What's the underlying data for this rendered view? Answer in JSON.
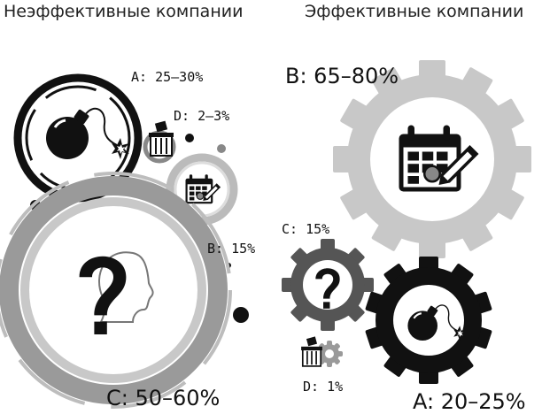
{
  "left_column": {
    "heading": "Неэффективные компании",
    "label_a": "A: 25–30%",
    "label_d": "D: 2–3%",
    "label_b": "B: 15%",
    "label_c": "C: 50–60%"
  },
  "right_column": {
    "heading": "Эффективные компании",
    "label_b": "B: 65–80%",
    "label_c": "C: 15%",
    "label_d": "D: 1%",
    "label_a": "A: 20–25%"
  },
  "icons": {
    "a": "bomb-icon",
    "b": "calendar-icon",
    "c": "question-icon",
    "d": "trash-icon"
  },
  "colors": {
    "ink": "#111111",
    "gray_light": "#c8c8c8",
    "gray_mid": "#9a9a9a",
    "gray_dark": "#555555"
  }
}
